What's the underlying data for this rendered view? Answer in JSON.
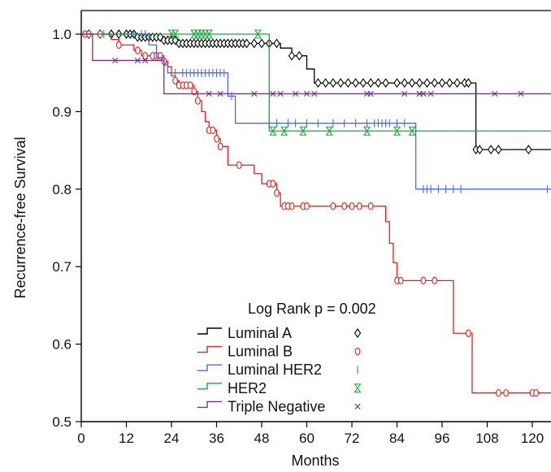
{
  "chart_data": {
    "type": "line",
    "subtype": "kaplan-meier step curves with censor marks",
    "title": "",
    "xlabel": "Months",
    "ylabel": "Recurrence-free Survival",
    "xlim": [
      0,
      126
    ],
    "ylim": [
      0.5,
      1.03
    ],
    "xticks": [
      0,
      12,
      24,
      36,
      48,
      60,
      72,
      84,
      96,
      108,
      120
    ],
    "xtick_labels": [
      "0",
      "12",
      "24",
      "36",
      "48",
      "60",
      "72",
      "84",
      "96",
      "108",
      "120"
    ],
    "yticks": [
      0.5,
      0.6,
      0.7,
      0.8,
      0.9,
      1.0
    ],
    "ytick_labels": [
      "0.5",
      "0.6",
      "0.7",
      "0.8",
      "0.9",
      "1.0"
    ],
    "grid": false,
    "legend_position": "lower-center",
    "annotation": "Log Rank p = 0.002",
    "series": [
      {
        "name": "Luminal A",
        "color": "#000000",
        "marker": "diamond",
        "marker_label": "◊",
        "steps": [
          [
            0,
            1.0
          ],
          [
            15,
            0.996
          ],
          [
            22,
            0.992
          ],
          [
            26,
            0.988
          ],
          [
            53,
            0.982
          ],
          [
            56,
            0.972
          ],
          [
            60,
            0.955
          ],
          [
            62,
            0.937
          ],
          [
            105,
            0.851
          ],
          [
            126,
            0.851
          ]
        ],
        "censor_x": [
          2,
          5,
          8,
          10,
          12,
          13,
          14,
          15,
          16,
          17,
          18,
          19,
          20,
          21,
          22,
          23,
          24,
          25,
          26,
          27,
          28,
          29,
          30,
          31,
          32,
          33,
          34,
          35,
          36,
          37,
          38,
          39,
          40,
          41,
          42,
          43,
          44,
          46,
          48,
          50,
          52,
          56,
          58,
          63,
          65,
          67,
          69,
          71,
          73,
          75,
          77,
          79,
          81,
          84,
          86,
          88,
          90,
          92,
          94,
          96,
          98,
          100,
          102,
          103,
          105,
          106,
          109,
          111,
          119
        ]
      },
      {
        "name": "Luminal B",
        "color": "#e4201c",
        "marker": "open-circle",
        "marker_label": "O",
        "steps": [
          [
            0,
            1.0
          ],
          [
            8,
            0.993
          ],
          [
            10,
            0.986
          ],
          [
            14,
            0.979
          ],
          [
            16,
            0.972
          ],
          [
            22,
            0.965
          ],
          [
            23,
            0.958
          ],
          [
            24,
            0.946
          ],
          [
            25,
            0.94
          ],
          [
            26,
            0.934
          ],
          [
            30,
            0.926
          ],
          [
            31,
            0.914
          ],
          [
            32,
            0.9
          ],
          [
            33,
            0.887
          ],
          [
            34,
            0.876
          ],
          [
            36,
            0.865
          ],
          [
            37,
            0.855
          ],
          [
            39,
            0.831
          ],
          [
            46,
            0.82
          ],
          [
            48,
            0.807
          ],
          [
            52,
            0.795
          ],
          [
            53,
            0.778
          ],
          [
            81,
            0.758
          ],
          [
            82,
            0.73
          ],
          [
            83,
            0.705
          ],
          [
            84,
            0.682
          ],
          [
            99,
            0.614
          ],
          [
            104,
            0.537
          ],
          [
            126,
            0.537
          ]
        ],
        "censor_x": [
          1,
          2,
          5,
          10,
          15,
          17,
          19,
          20,
          21,
          22,
          25,
          26,
          27,
          28,
          29,
          30,
          31,
          34,
          35,
          36,
          37,
          42,
          50,
          51,
          52,
          54,
          55,
          56,
          59,
          60,
          67,
          70,
          72,
          74,
          77,
          84,
          85,
          91,
          94,
          103,
          111,
          113,
          120,
          121
        ]
      },
      {
        "name": "Luminal HER2",
        "color": "#4a68f0",
        "marker": "vertical-tick",
        "marker_label": "|",
        "steps": [
          [
            0,
            1.0
          ],
          [
            18,
            0.986
          ],
          [
            20,
            0.97
          ],
          [
            22,
            0.96
          ],
          [
            23,
            0.95
          ],
          [
            39,
            0.92
          ],
          [
            41,
            0.885
          ],
          [
            89,
            0.8
          ],
          [
            126,
            0.8
          ]
        ],
        "censor_x": [
          6,
          14,
          16,
          17,
          25,
          27,
          28,
          29,
          30,
          31,
          32,
          33,
          34,
          35,
          36,
          37,
          38,
          40,
          50,
          52,
          55,
          57,
          60,
          63,
          67,
          70,
          73,
          76,
          78,
          79,
          80,
          81,
          82,
          84,
          86,
          91,
          92,
          93,
          95,
          97,
          99,
          101,
          124
        ]
      },
      {
        "name": "HER2",
        "color": "#1ea83a",
        "marker": "hourglass",
        "marker_label": "⧗",
        "steps": [
          [
            0,
            1.0
          ],
          [
            50,
            0.875
          ],
          [
            126,
            0.875
          ]
        ],
        "censor_x": [
          24,
          25,
          30,
          31,
          32,
          33,
          34,
          47,
          51,
          54,
          59,
          66,
          76,
          84,
          88
        ]
      },
      {
        "name": "Triple Negative",
        "color": "#7b2d8e",
        "marker": "x",
        "marker_label": "×",
        "steps": [
          [
            0,
            1.0
          ],
          [
            3,
            0.966
          ],
          [
            22,
            0.923
          ],
          [
            126,
            0.923
          ]
        ],
        "censor_x": [
          9,
          15,
          17,
          34,
          37,
          46,
          51,
          53,
          57,
          60,
          62,
          76,
          77,
          86,
          90,
          90,
          91,
          93,
          110,
          117
        ]
      }
    ]
  }
}
